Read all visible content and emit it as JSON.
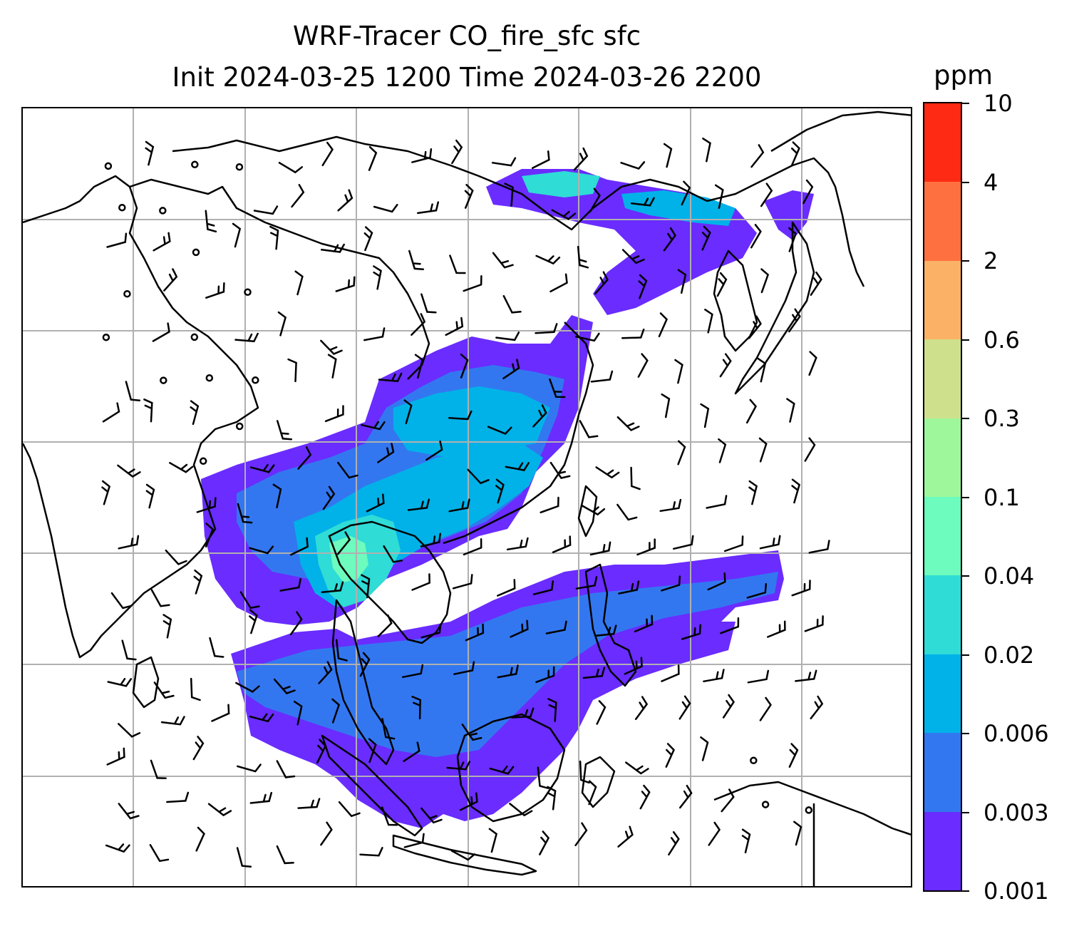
{
  "title": {
    "line1": "WRF-Tracer CO_fire_sfc sfc",
    "line2": "Init 2024-03-25 1200 Time 2024-03-26 2200"
  },
  "colorbar": {
    "units": "ppm",
    "levels": [
      "0.001",
      "0.003",
      "0.006",
      "0.02",
      "0.04",
      "0.1",
      "0.3",
      "0.6",
      "2",
      "4",
      "10"
    ],
    "colors": [
      "#6a2cff",
      "#3377f0",
      "#00b2e8",
      "#2fdcd6",
      "#6dfbbe",
      "#9ff79b",
      "#cfe08c",
      "#fcb266",
      "#ff7040",
      "#ff2a14"
    ]
  },
  "map": {
    "plume_colors": [
      "#6a2cff",
      "#3377f0",
      "#00b2e8",
      "#2fdcd6",
      "#6dfbbe"
    ],
    "coastline_color": "#000000",
    "gridline_color": "#b0b0b0",
    "wind_barb_color": "#000000"
  }
}
